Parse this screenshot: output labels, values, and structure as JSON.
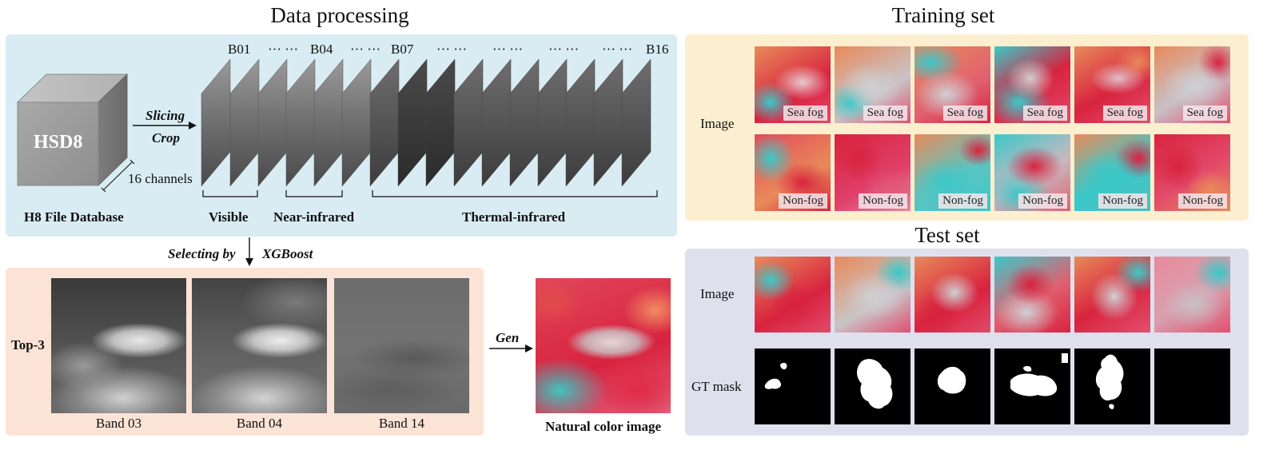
{
  "titles": {
    "data_processing": "Data processing",
    "training_set": "Training set",
    "test_set": "Test set"
  },
  "database": {
    "cube_label": "HSD8",
    "channels_label": "16 channels",
    "caption": "H8 File Database"
  },
  "arrow_slicing": {
    "line1": "Slicing",
    "line2": "Crop"
  },
  "band_labels": [
    "B01",
    "··· ···",
    "B04",
    "··· ···",
    "B07",
    "··· ···",
    "··· ···",
    "··· ···",
    "··· ···",
    "B16"
  ],
  "groups": {
    "visible": "Visible",
    "near_infrared": "Near-infrared",
    "thermal_infrared": "Thermal-infrared"
  },
  "selecting": {
    "left": "Selecting by",
    "right": "XGBoost"
  },
  "top3": {
    "label": "Top-3",
    "bands": [
      "Band 03",
      "Band 04",
      "Band 14"
    ]
  },
  "gen": {
    "label": "Gen",
    "caption": "Natural color image"
  },
  "training": {
    "row_label": "Image",
    "row1_tags": [
      "Sea fog",
      "Sea fog",
      "Sea fog",
      "Sea fog",
      "Sea fog",
      "Sea fog"
    ],
    "row2_tags": [
      "Non-fog",
      "Non-fog",
      "Non-fog",
      "Non-fog",
      "Non-fog",
      "Non-fog"
    ]
  },
  "test": {
    "image_label": "Image",
    "mask_label": "GT mask"
  },
  "colors": {
    "top_left_panel": "#d9ecf3",
    "bottom_left_panel": "#fbe3d6",
    "training_panel": "#fcefd0",
    "test_panel": "#dfe0ee",
    "sat_red": "#d8233f",
    "sat_cyan": "#3cc8c8",
    "sat_orange": "#e88a5a"
  }
}
